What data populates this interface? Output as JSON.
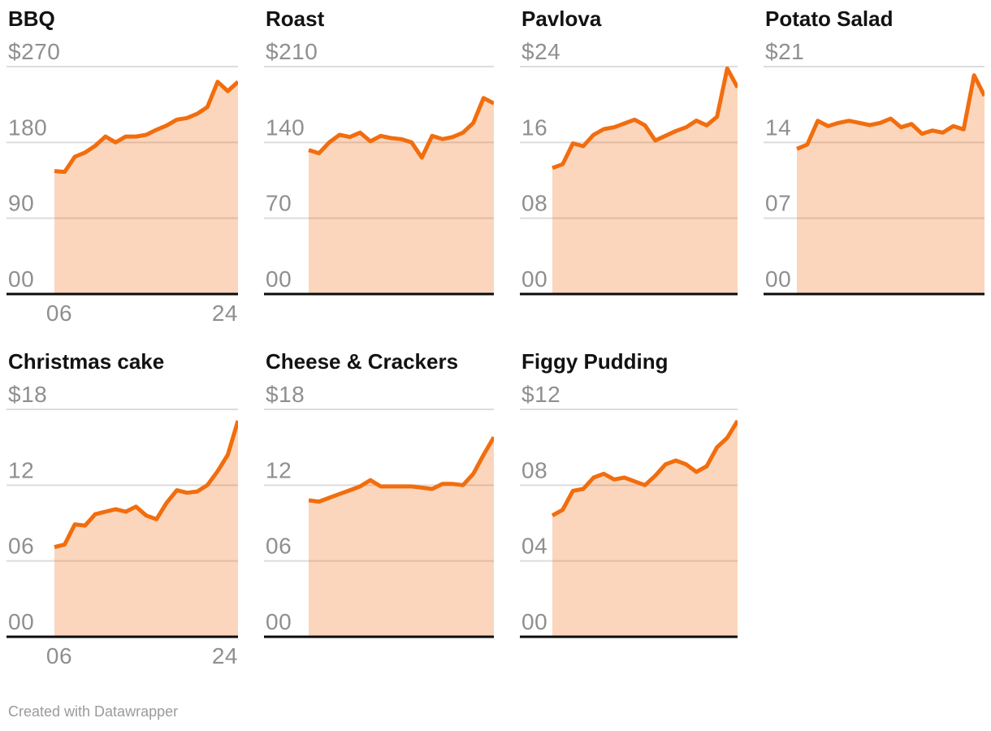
{
  "footer": {
    "credit": "Created with Datawrapper"
  },
  "style": {
    "line_color": "#f26d0e",
    "area_fill": "rgba(242,109,14,0.28)",
    "grid_color": "#dcdcdc",
    "axis_color": "#0b0b0b",
    "title_color": "#121212",
    "tick_label_color": "#8f8f8f",
    "footer_color": "#9b9b9b"
  },
  "chart_data": [
    {
      "type": "area",
      "title": "BBQ",
      "ylim": [
        0,
        270
      ],
      "y_tick_labels": [
        "$270",
        "180",
        "90",
        "00"
      ],
      "x_tick_labels": [
        "06",
        "24"
      ],
      "x": [
        2006,
        2007,
        2008,
        2009,
        2010,
        2011,
        2012,
        2013,
        2014,
        2015,
        2016,
        2017,
        2018,
        2019,
        2020,
        2021,
        2022,
        2023,
        2024
      ],
      "values": [
        146,
        145,
        163,
        168,
        176,
        187,
        180,
        187,
        187,
        189,
        195,
        200,
        207,
        209,
        214,
        222,
        252,
        241,
        252
      ]
    },
    {
      "type": "area",
      "title": "Roast",
      "ylim": [
        0,
        210
      ],
      "y_tick_labels": [
        "$210",
        "140",
        "70",
        "00"
      ],
      "x_tick_labels": [],
      "x": [
        2006,
        2007,
        2008,
        2009,
        2010,
        2011,
        2012,
        2013,
        2014,
        2015,
        2016,
        2017,
        2018,
        2019,
        2020,
        2021,
        2022,
        2023,
        2024
      ],
      "values": [
        133,
        130,
        140,
        147,
        145,
        149,
        141,
        146,
        144,
        143,
        140,
        126,
        146,
        143,
        145,
        149,
        158,
        181,
        176
      ]
    },
    {
      "type": "area",
      "title": "Pavlova",
      "ylim": [
        0,
        24
      ],
      "y_tick_labels": [
        "$24",
        "16",
        "08",
        "00"
      ],
      "x_tick_labels": [],
      "x": [
        2006,
        2007,
        2008,
        2009,
        2010,
        2011,
        2012,
        2013,
        2014,
        2015,
        2016,
        2017,
        2018,
        2019,
        2020,
        2021,
        2022,
        2023,
        2024
      ],
      "values": [
        13.3,
        13.7,
        15.9,
        15.6,
        16.8,
        17.4,
        17.6,
        18.0,
        18.4,
        17.8,
        16.2,
        16.7,
        17.2,
        17.6,
        18.3,
        17.8,
        18.7,
        23.8,
        21.8
      ]
    },
    {
      "type": "area",
      "title": "Potato Salad",
      "ylim": [
        0,
        21
      ],
      "y_tick_labels": [
        "$21",
        "14",
        "07",
        "00"
      ],
      "x_tick_labels": [],
      "x": [
        2006,
        2007,
        2008,
        2009,
        2010,
        2011,
        2012,
        2013,
        2014,
        2015,
        2016,
        2017,
        2018,
        2019,
        2020,
        2021,
        2022,
        2023,
        2024
      ],
      "values": [
        13.4,
        13.8,
        16.0,
        15.5,
        15.8,
        16.0,
        15.8,
        15.6,
        15.8,
        16.2,
        15.4,
        15.7,
        14.8,
        15.1,
        14.9,
        15.5,
        15.2,
        20.2,
        18.3
      ]
    },
    {
      "type": "area",
      "title": "Christmas cake",
      "ylim": [
        0,
        18
      ],
      "y_tick_labels": [
        "$18",
        "12",
        "06",
        "00"
      ],
      "x_tick_labels": [
        "06",
        "24"
      ],
      "x": [
        2006,
        2007,
        2008,
        2009,
        2010,
        2011,
        2012,
        2013,
        2014,
        2015,
        2016,
        2017,
        2018,
        2019,
        2020,
        2021,
        2022,
        2023,
        2024
      ],
      "values": [
        7.1,
        7.3,
        8.9,
        8.8,
        9.7,
        9.9,
        10.1,
        9.9,
        10.3,
        9.6,
        9.3,
        10.6,
        11.6,
        11.4,
        11.5,
        12.0,
        13.1,
        14.4,
        17.1
      ]
    },
    {
      "type": "area",
      "title": "Cheese & Crackers",
      "ylim": [
        0,
        18
      ],
      "y_tick_labels": [
        "$18",
        "12",
        "06",
        "00"
      ],
      "x_tick_labels": [],
      "x": [
        2006,
        2007,
        2008,
        2009,
        2010,
        2011,
        2012,
        2013,
        2014,
        2015,
        2016,
        2017,
        2018,
        2019,
        2020,
        2021,
        2022,
        2023,
        2024
      ],
      "values": [
        10.8,
        10.7,
        11.0,
        11.3,
        11.6,
        11.9,
        12.4,
        11.9,
        11.9,
        11.9,
        11.9,
        11.8,
        11.7,
        12.1,
        12.1,
        12.0,
        12.9,
        14.4,
        15.8
      ]
    },
    {
      "type": "area",
      "title": "Figgy Pudding",
      "ylim": [
        0,
        12
      ],
      "y_tick_labels": [
        "$12",
        "08",
        "04",
        "00"
      ],
      "x_tick_labels": [],
      "x": [
        2006,
        2007,
        2008,
        2009,
        2010,
        2011,
        2012,
        2013,
        2014,
        2015,
        2016,
        2017,
        2018,
        2019,
        2020,
        2021,
        2022,
        2023,
        2024
      ],
      "values": [
        6.4,
        6.7,
        7.7,
        7.8,
        8.4,
        8.6,
        8.3,
        8.4,
        8.2,
        8.0,
        8.5,
        9.1,
        9.3,
        9.1,
        8.7,
        9.0,
        10.0,
        10.5,
        11.4
      ]
    }
  ]
}
